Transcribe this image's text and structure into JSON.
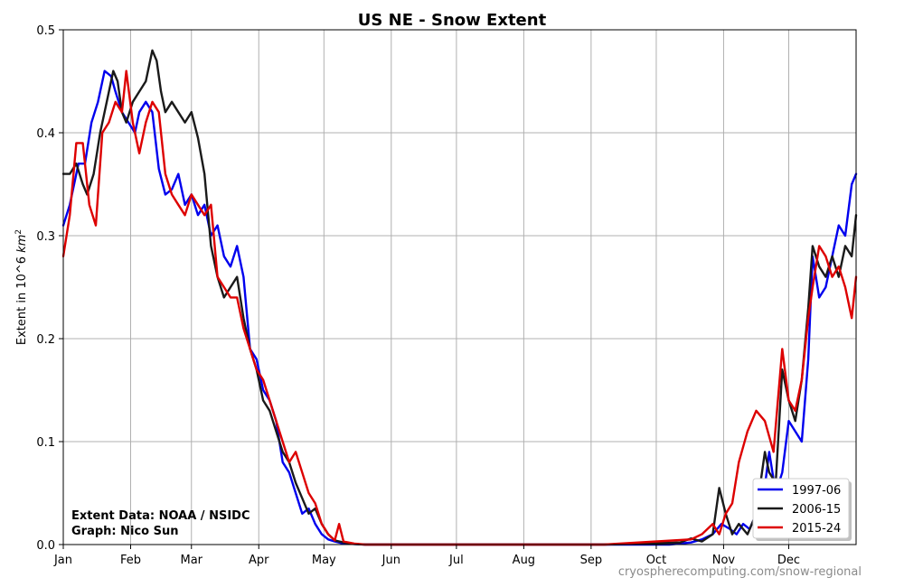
{
  "chart_data": {
    "type": "line",
    "title": "US NE - Snow Extent",
    "ylabel": "Extent in 10^6 km²",
    "ylabel_prefix": "Extent in 10^6 ",
    "ylabel_unit": "km",
    "ylabel_sup": "2",
    "xlabel": "",
    "ylim": [
      0,
      0.5
    ],
    "xlim": [
      1,
      366
    ],
    "grid": true,
    "legend_position": "bottom-right",
    "months": [
      {
        "label": "Jan",
        "day": 1
      },
      {
        "label": "Feb",
        "day": 32
      },
      {
        "label": "Mar",
        "day": 60
      },
      {
        "label": "Apr",
        "day": 91
      },
      {
        "label": "May",
        "day": 121
      },
      {
        "label": "Jun",
        "day": 152
      },
      {
        "label": "Jul",
        "day": 182
      },
      {
        "label": "Aug",
        "day": 213
      },
      {
        "label": "Sep",
        "day": 244
      },
      {
        "label": "Oct",
        "day": 274
      },
      {
        "label": "Nov",
        "day": 305
      },
      {
        "label": "Dec",
        "day": 335
      }
    ],
    "yticks": [
      {
        "label": "0.0",
        "value": 0.0
      },
      {
        "label": "0.1",
        "value": 0.1
      },
      {
        "label": "0.2",
        "value": 0.2
      },
      {
        "label": "0.3",
        "value": 0.3
      },
      {
        "label": "0.4",
        "value": 0.4
      },
      {
        "label": "0.5",
        "value": 0.5
      }
    ],
    "series": [
      {
        "name": "1997-06",
        "color": "#0000ee",
        "x": [
          1,
          4,
          8,
          11,
          14,
          17,
          20,
          23,
          25,
          28,
          31,
          34,
          36,
          39,
          42,
          45,
          48,
          51,
          54,
          57,
          60,
          63,
          66,
          69,
          72,
          75,
          78,
          81,
          84,
          87,
          90,
          93,
          96,
          99,
          102,
          105,
          108,
          111,
          114,
          117,
          120,
          123,
          126,
          130,
          135,
          140,
          160,
          200,
          250,
          280,
          290,
          295,
          300,
          304,
          308,
          311,
          314,
          317,
          320,
          323,
          326,
          329,
          332,
          335,
          338,
          341,
          344,
          346,
          349,
          352,
          355,
          358,
          361,
          364,
          366
        ],
        "y": [
          0.31,
          0.33,
          0.37,
          0.37,
          0.41,
          0.43,
          0.46,
          0.455,
          0.44,
          0.42,
          0.41,
          0.4,
          0.42,
          0.43,
          0.42,
          0.365,
          0.34,
          0.345,
          0.36,
          0.33,
          0.34,
          0.32,
          0.33,
          0.3,
          0.31,
          0.28,
          0.27,
          0.29,
          0.26,
          0.19,
          0.18,
          0.15,
          0.14,
          0.12,
          0.08,
          0.07,
          0.05,
          0.03,
          0.035,
          0.02,
          0.01,
          0.005,
          0.003,
          0.001,
          0.0005,
          0.0,
          0.0,
          0.0,
          0.0,
          0.0,
          0.002,
          0.005,
          0.01,
          0.02,
          0.015,
          0.01,
          0.02,
          0.015,
          0.03,
          0.04,
          0.09,
          0.05,
          0.07,
          0.12,
          0.11,
          0.1,
          0.18,
          0.28,
          0.24,
          0.25,
          0.28,
          0.31,
          0.3,
          0.35,
          0.36
        ]
      },
      {
        "name": "2006-15",
        "color": "#1a1a1a",
        "x": [
          1,
          4,
          7,
          10,
          12,
          15,
          18,
          21,
          24,
          26,
          28,
          30,
          33,
          36,
          39,
          42,
          44,
          46,
          48,
          51,
          54,
          57,
          60,
          63,
          66,
          69,
          72,
          75,
          78,
          81,
          84,
          87,
          90,
          93,
          96,
          99,
          102,
          105,
          108,
          111,
          114,
          117,
          120,
          123,
          126,
          130,
          135,
          140,
          160,
          200,
          250,
          285,
          290,
          295,
          300,
          303,
          306,
          309,
          312,
          316,
          320,
          324,
          326,
          329,
          332,
          335,
          338,
          341,
          344,
          346,
          349,
          352,
          355,
          358,
          361,
          364,
          366
        ],
        "y": [
          0.36,
          0.36,
          0.37,
          0.35,
          0.34,
          0.36,
          0.4,
          0.43,
          0.46,
          0.45,
          0.42,
          0.41,
          0.43,
          0.44,
          0.45,
          0.48,
          0.47,
          0.44,
          0.42,
          0.43,
          0.42,
          0.41,
          0.42,
          0.395,
          0.36,
          0.29,
          0.26,
          0.24,
          0.25,
          0.26,
          0.22,
          0.19,
          0.17,
          0.14,
          0.13,
          0.11,
          0.09,
          0.08,
          0.06,
          0.045,
          0.03,
          0.035,
          0.02,
          0.01,
          0.004,
          0.002,
          0.0005,
          0.0,
          0.0,
          0.0,
          0.0,
          0.002,
          0.006,
          0.003,
          0.01,
          0.055,
          0.03,
          0.01,
          0.02,
          0.01,
          0.03,
          0.09,
          0.07,
          0.06,
          0.17,
          0.14,
          0.12,
          0.16,
          0.23,
          0.29,
          0.27,
          0.26,
          0.28,
          0.26,
          0.29,
          0.28,
          0.32
        ]
      },
      {
        "name": "2015-24",
        "color": "#dd0000",
        "x": [
          1,
          4,
          7,
          10,
          13,
          16,
          19,
          22,
          25,
          28,
          30,
          33,
          36,
          39,
          42,
          45,
          48,
          51,
          54,
          57,
          60,
          63,
          66,
          69,
          72,
          75,
          78,
          81,
          84,
          87,
          90,
          93,
          96,
          99,
          102,
          105,
          108,
          111,
          114,
          117,
          120,
          123,
          126,
          128,
          130,
          135,
          140,
          160,
          200,
          250,
          290,
          295,
          300,
          303,
          306,
          309,
          312,
          316,
          320,
          324,
          328,
          332,
          335,
          338,
          341,
          344,
          346,
          349,
          352,
          355,
          358,
          361,
          364,
          366
        ],
        "y": [
          0.28,
          0.32,
          0.39,
          0.39,
          0.33,
          0.31,
          0.4,
          0.41,
          0.43,
          0.42,
          0.46,
          0.41,
          0.38,
          0.41,
          0.43,
          0.42,
          0.36,
          0.34,
          0.33,
          0.32,
          0.34,
          0.33,
          0.32,
          0.33,
          0.26,
          0.25,
          0.24,
          0.24,
          0.21,
          0.19,
          0.17,
          0.16,
          0.14,
          0.12,
          0.1,
          0.08,
          0.09,
          0.07,
          0.05,
          0.04,
          0.02,
          0.01,
          0.004,
          0.02,
          0.003,
          0.001,
          0.0,
          0.0,
          0.0,
          0.0,
          0.005,
          0.01,
          0.02,
          0.01,
          0.03,
          0.04,
          0.08,
          0.11,
          0.13,
          0.12,
          0.09,
          0.19,
          0.14,
          0.13,
          0.16,
          0.22,
          0.25,
          0.29,
          0.28,
          0.26,
          0.27,
          0.25,
          0.22,
          0.26
        ]
      }
    ],
    "annotations": {
      "source_line1": "Extent Data: NOAA / NSIDC",
      "source_line2": "Graph: Nico Sun",
      "watermark": "cryospherecomputing.com/snow-regional"
    }
  }
}
